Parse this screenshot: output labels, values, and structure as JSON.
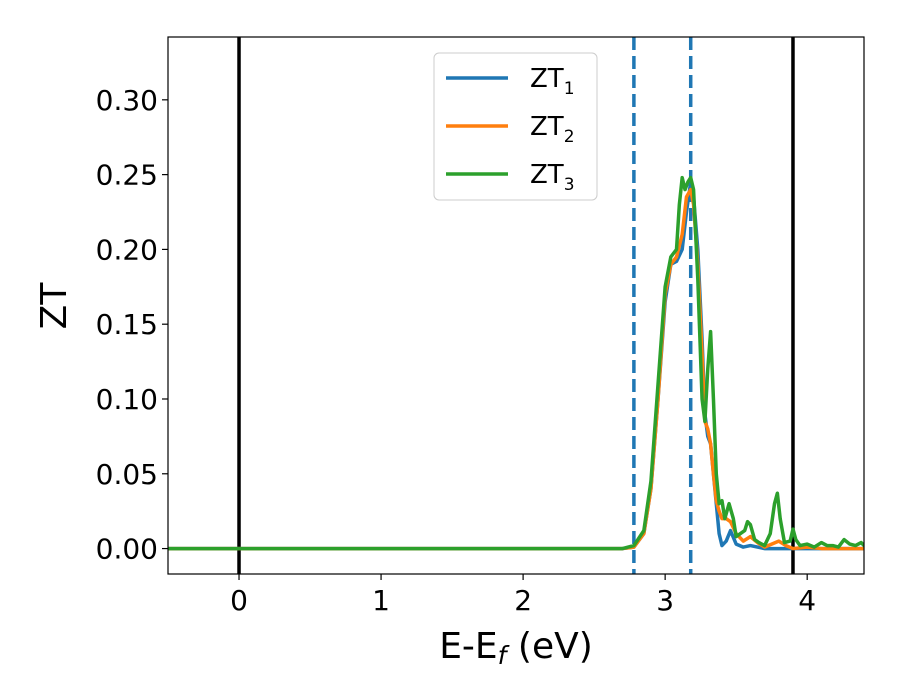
{
  "chart_data": {
    "type": "line",
    "xlabel_main": "E-E",
    "xlabel_sub": "f",
    "xlabel_unit": " (eV)",
    "ylabel": "ZT",
    "xlim": [
      -0.5,
      4.4
    ],
    "ylim": [
      -0.017,
      0.342
    ],
    "xticks": [
      0,
      1,
      2,
      3,
      4
    ],
    "yticks": [
      0.0,
      0.05,
      0.1,
      0.15,
      0.2,
      0.25,
      0.3
    ],
    "grid": false,
    "legend_placement": "upper-center",
    "vlines": [
      {
        "x": 0.0,
        "style": "solid",
        "color": "#000000"
      },
      {
        "x": 2.78,
        "style": "dashed",
        "color": "#1f77b4"
      },
      {
        "x": 3.18,
        "style": "dashed",
        "color": "#1f77b4"
      },
      {
        "x": 3.9,
        "style": "solid",
        "color": "#000000"
      }
    ],
    "series": [
      {
        "name": "ZT",
        "sub": "1",
        "color": "#1f77b4",
        "x": [
          -0.5,
          2.7,
          2.78,
          2.85,
          2.9,
          2.95,
          3.0,
          3.04,
          3.08,
          3.12,
          3.15,
          3.18,
          3.2,
          3.23,
          3.26,
          3.28,
          3.3,
          3.32,
          3.34,
          3.36,
          3.38,
          3.4,
          3.43,
          3.46,
          3.5,
          3.55,
          3.6,
          3.65,
          3.7,
          3.75,
          3.8,
          3.85,
          3.9,
          4.0,
          4.1,
          4.2,
          4.3,
          4.4
        ],
        "y": [
          0.0,
          0.0,
          0.001,
          0.01,
          0.04,
          0.1,
          0.165,
          0.19,
          0.192,
          0.2,
          0.225,
          0.245,
          0.235,
          0.2,
          0.14,
          0.09,
          0.075,
          0.07,
          0.05,
          0.03,
          0.01,
          0.002,
          0.005,
          0.012,
          0.003,
          0.001,
          0.002,
          0.001,
          0.0,
          0.0,
          0.0,
          0.0,
          0.0,
          0.0,
          0.0,
          0.0,
          0.0,
          0.0
        ]
      },
      {
        "name": "ZT",
        "sub": "2",
        "color": "#ff7f0e",
        "x": [
          -0.5,
          2.7,
          2.78,
          2.85,
          2.9,
          2.95,
          3.0,
          3.04,
          3.08,
          3.12,
          3.15,
          3.18,
          3.2,
          3.23,
          3.26,
          3.28,
          3.3,
          3.32,
          3.34,
          3.36,
          3.38,
          3.4,
          3.43,
          3.46,
          3.5,
          3.55,
          3.6,
          3.65,
          3.7,
          3.75,
          3.8,
          3.85,
          3.9,
          4.0,
          4.1,
          4.2,
          4.3,
          4.4
        ],
        "y": [
          0.0,
          0.0,
          0.001,
          0.01,
          0.04,
          0.1,
          0.17,
          0.19,
          0.195,
          0.21,
          0.235,
          0.24,
          0.23,
          0.19,
          0.13,
          0.085,
          0.08,
          0.07,
          0.05,
          0.032,
          0.025,
          0.02,
          0.02,
          0.018,
          0.01,
          0.005,
          0.008,
          0.004,
          0.001,
          0.003,
          0.005,
          0.002,
          0.0,
          0.001,
          0.0,
          0.0,
          0.0,
          0.0
        ]
      },
      {
        "name": "ZT",
        "sub": "3",
        "color": "#2ca02c",
        "x": [
          -0.5,
          2.7,
          2.78,
          2.85,
          2.9,
          2.95,
          3.0,
          3.04,
          3.08,
          3.1,
          3.12,
          3.14,
          3.16,
          3.18,
          3.2,
          3.23,
          3.26,
          3.28,
          3.3,
          3.32,
          3.34,
          3.36,
          3.38,
          3.4,
          3.42,
          3.45,
          3.48,
          3.5,
          3.53,
          3.56,
          3.58,
          3.6,
          3.63,
          3.66,
          3.7,
          3.74,
          3.77,
          3.79,
          3.81,
          3.84,
          3.88,
          3.9,
          3.92,
          3.95,
          4.0,
          4.05,
          4.1,
          4.14,
          4.18,
          4.22,
          4.26,
          4.3,
          4.34,
          4.38,
          4.4
        ],
        "y": [
          0.0,
          0.0,
          0.002,
          0.012,
          0.045,
          0.11,
          0.175,
          0.195,
          0.2,
          0.23,
          0.248,
          0.24,
          0.245,
          0.248,
          0.24,
          0.18,
          0.1,
          0.085,
          0.12,
          0.145,
          0.1,
          0.05,
          0.03,
          0.032,
          0.02,
          0.03,
          0.02,
          0.008,
          0.01,
          0.012,
          0.018,
          0.016,
          0.006,
          0.004,
          0.002,
          0.01,
          0.03,
          0.037,
          0.02,
          0.004,
          0.005,
          0.013,
          0.006,
          0.002,
          0.003,
          0.001,
          0.004,
          0.002,
          0.002,
          0.001,
          0.006,
          0.003,
          0.002,
          0.004,
          0.002
        ]
      }
    ]
  }
}
